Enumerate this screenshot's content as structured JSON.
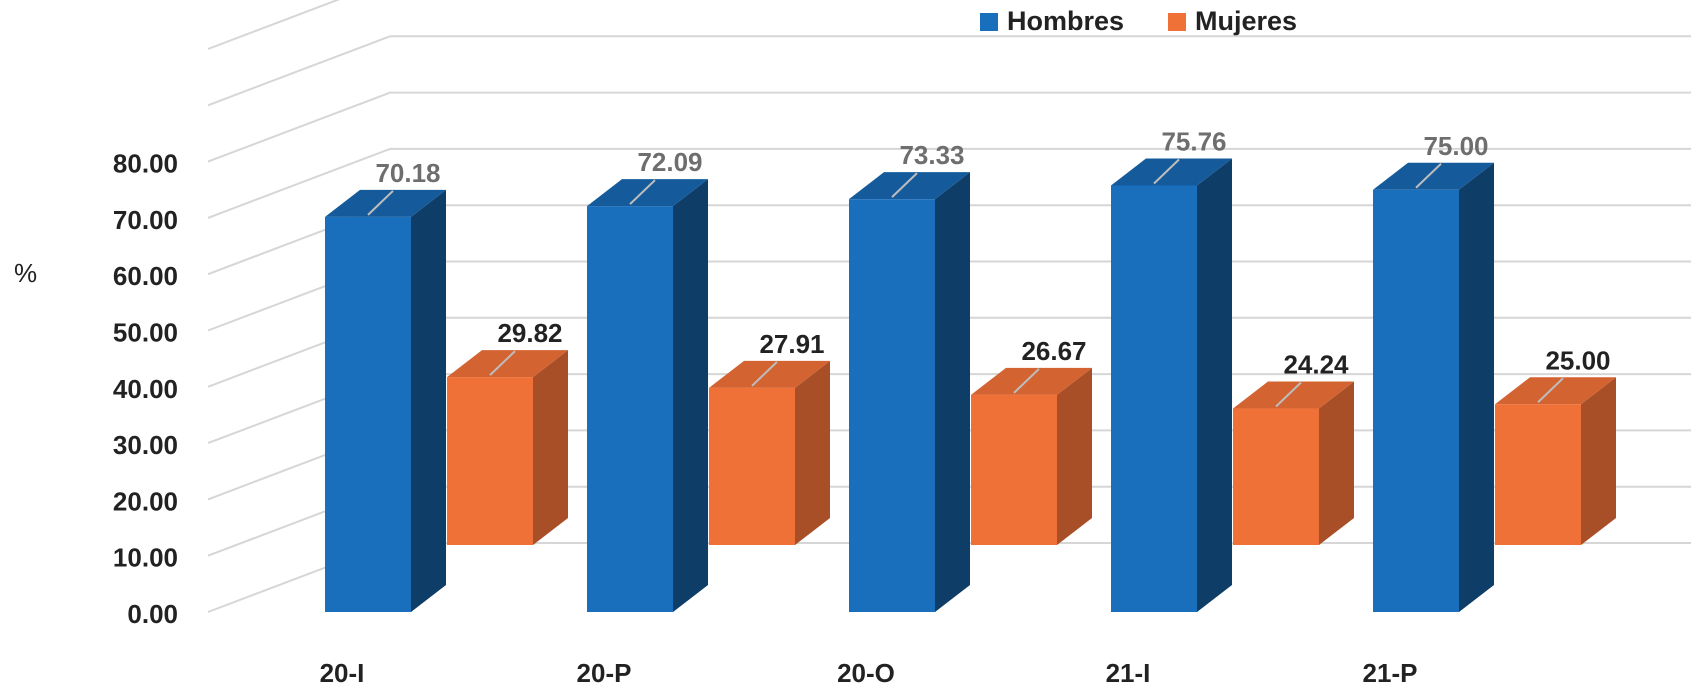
{
  "chart_data": {
    "type": "bar",
    "title": "",
    "xlabel": "",
    "ylabel": "%",
    "categories": [
      "20-I",
      "20-P",
      "20-O",
      "21-I",
      "21-P"
    ],
    "series": [
      {
        "name": "Hombres",
        "values": [
          70.18,
          72.09,
          73.33,
          75.76,
          75.0
        ],
        "color": "#1a6fbd"
      },
      {
        "name": "Mujeres",
        "values": [
          29.82,
          27.91,
          26.67,
          24.24,
          25.0
        ],
        "color": "#f07138"
      }
    ],
    "yticks": [
      "0.00",
      "10.00",
      "20.00",
      "30.00",
      "40.00",
      "50.00",
      "60.00",
      "70.00",
      "80.00"
    ],
    "ylim": [
      0,
      80
    ],
    "grid": true,
    "legend_position": "top-right",
    "projection": "3d"
  }
}
